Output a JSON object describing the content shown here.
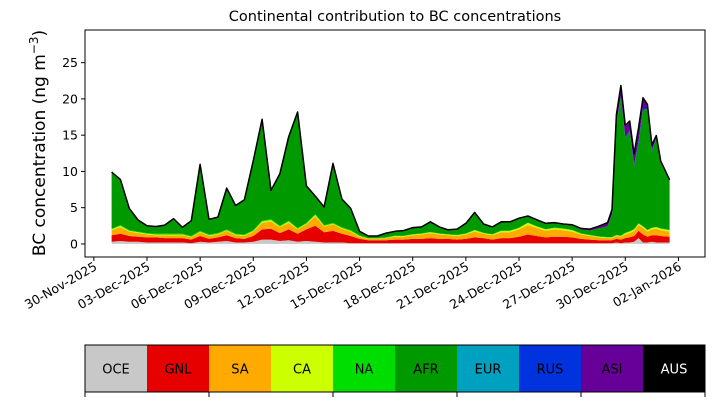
{
  "chart_data": {
    "type": "area",
    "title": "Continental contribution to BC concentrations",
    "ylabel_main": "BC concentration (ng m",
    "ylabel_sup": "−3",
    "ylabel_close": ")",
    "xlabel": "",
    "ylim": [
      -1.8,
      29.5
    ],
    "xlim": [
      "2025-11-29T12:00",
      "2026-01-03T12:00"
    ],
    "y_ticks": [
      0,
      5,
      10,
      15,
      20,
      25
    ],
    "x_ticks": [
      "30-Nov-2025",
      "03-Dec-2025",
      "06-Dec-2025",
      "09-Dec-2025",
      "12-Dec-2025",
      "15-Dec-2025",
      "18-Dec-2025",
      "21-Dec-2025",
      "24-Dec-2025",
      "27-Dec-2025",
      "30-Dec-2025",
      "02-Jan-2026"
    ],
    "x_tick_dates": [
      "2025-11-30",
      "2025-12-03",
      "2025-12-06",
      "2025-12-09",
      "2025-12-12",
      "2025-12-15",
      "2025-12-18",
      "2025-12-21",
      "2025-12-24",
      "2025-12-27",
      "2025-12-30",
      "2026-01-02"
    ],
    "x": [
      "2025-12-01T00:00",
      "2025-12-01T12:00",
      "2025-12-02T00:00",
      "2025-12-02T12:00",
      "2025-12-03T00:00",
      "2025-12-03T12:00",
      "2025-12-04T00:00",
      "2025-12-04T12:00",
      "2025-12-05T00:00",
      "2025-12-05T12:00",
      "2025-12-06T00:00",
      "2025-12-06T12:00",
      "2025-12-07T00:00",
      "2025-12-07T12:00",
      "2025-12-08T00:00",
      "2025-12-08T12:00",
      "2025-12-09T00:00",
      "2025-12-09T12:00",
      "2025-12-10T00:00",
      "2025-12-10T12:00",
      "2025-12-11T00:00",
      "2025-12-11T12:00",
      "2025-12-12T00:00",
      "2025-12-12T12:00",
      "2025-12-13T00:00",
      "2025-12-13T12:00",
      "2025-12-14T00:00",
      "2025-12-14T12:00",
      "2025-12-15T00:00",
      "2025-12-15T12:00",
      "2025-12-16T00:00",
      "2025-12-16T12:00",
      "2025-12-17T00:00",
      "2025-12-17T12:00",
      "2025-12-18T00:00",
      "2025-12-18T12:00",
      "2025-12-19T00:00",
      "2025-12-19T12:00",
      "2025-12-20T00:00",
      "2025-12-20T12:00",
      "2025-12-21T00:00",
      "2025-12-21T12:00",
      "2025-12-22T00:00",
      "2025-12-22T12:00",
      "2025-12-23T00:00",
      "2025-12-23T12:00",
      "2025-12-24T00:00",
      "2025-12-24T12:00",
      "2025-12-25T00:00",
      "2025-12-25T12:00",
      "2025-12-26T00:00",
      "2025-12-26T12:00",
      "2025-12-27T00:00",
      "2025-12-27T12:00",
      "2025-12-28T00:00",
      "2025-12-28T12:00",
      "2025-12-29T00:00",
      "2025-12-29T06:00",
      "2025-12-29T12:00",
      "2025-12-29T18:00",
      "2025-12-30T00:00",
      "2025-12-30T06:00",
      "2025-12-30T12:00",
      "2025-12-30T18:00",
      "2025-12-31T00:00",
      "2025-12-31T06:00",
      "2025-12-31T12:00",
      "2025-12-31T18:00",
      "2026-01-01T00:00",
      "2026-01-01T12:00"
    ],
    "series": [
      {
        "name": "OCE",
        "color": "#c8c8c8",
        "values": [
          0.3,
          0.4,
          0.3,
          0.3,
          0.2,
          0.2,
          0.2,
          0.2,
          0.2,
          0.1,
          0.3,
          0.2,
          0.3,
          0.4,
          0.2,
          0.2,
          0.3,
          0.6,
          0.6,
          0.4,
          0.5,
          0.3,
          0.4,
          0.3,
          0.2,
          0.2,
          0.2,
          0.1,
          0.1,
          0.1,
          0.1,
          0.1,
          0.1,
          0.1,
          0.1,
          0.1,
          0.1,
          0.1,
          0.1,
          0.1,
          0.1,
          0.1,
          0.1,
          0.1,
          0.1,
          0.1,
          0.1,
          0.1,
          0.1,
          0.1,
          0.1,
          0.1,
          0.1,
          0.1,
          0.1,
          0.1,
          0.1,
          0.1,
          0.2,
          0.1,
          0.2,
          0.2,
          0.3,
          0.8,
          0.2,
          0.2,
          0.3,
          0.2,
          0.2,
          0.2
        ]
      },
      {
        "name": "GNL",
        "color": "#e60000",
        "values": [
          0.9,
          1.0,
          0.8,
          0.7,
          0.7,
          0.7,
          0.6,
          0.6,
          0.6,
          0.5,
          0.8,
          0.5,
          0.6,
          0.8,
          0.6,
          0.5,
          0.8,
          1.4,
          1.5,
          1.1,
          1.5,
          1.1,
          1.6,
          2.2,
          1.4,
          1.6,
          1.2,
          1.0,
          0.6,
          0.4,
          0.4,
          0.4,
          0.5,
          0.5,
          0.6,
          0.6,
          0.7,
          0.6,
          0.6,
          0.5,
          0.6,
          0.8,
          0.7,
          0.5,
          0.7,
          0.7,
          0.9,
          1.2,
          1.0,
          0.8,
          0.9,
          0.9,
          0.8,
          0.6,
          0.5,
          0.4,
          0.4,
          0.4,
          0.5,
          0.5,
          0.6,
          0.7,
          0.8,
          1.0,
          1.1,
          0.8,
          0.9,
          1.0,
          0.9,
          0.8
        ]
      },
      {
        "name": "SA",
        "color": "#ffaa00",
        "values": [
          0.7,
          0.9,
          0.6,
          0.5,
          0.4,
          0.3,
          0.4,
          0.4,
          0.4,
          0.3,
          0.5,
          0.4,
          0.4,
          0.6,
          0.4,
          0.4,
          0.6,
          0.9,
          1.0,
          0.8,
          0.9,
          0.6,
          0.7,
          1.3,
          0.8,
          0.9,
          0.7,
          0.6,
          0.3,
          0.2,
          0.2,
          0.3,
          0.4,
          0.4,
          0.5,
          0.6,
          0.7,
          0.6,
          0.5,
          0.5,
          0.6,
          0.8,
          0.6,
          0.6,
          0.8,
          0.8,
          1.0,
          1.3,
          1.1,
          0.9,
          1.0,
          0.9,
          0.8,
          0.6,
          0.5,
          0.4,
          0.3,
          0.3,
          0.4,
          0.4,
          0.5,
          0.6,
          0.7,
          0.8,
          0.9,
          0.7,
          0.8,
          0.9,
          0.8,
          0.7
        ]
      },
      {
        "name": "CA",
        "color": "#ccff00",
        "values": [
          0.1,
          0.2,
          0.1,
          0.1,
          0.1,
          0.1,
          0.1,
          0.1,
          0.1,
          0.1,
          0.1,
          0.1,
          0.1,
          0.1,
          0.1,
          0.1,
          0.1,
          0.2,
          0.2,
          0.1,
          0.2,
          0.1,
          0.1,
          0.2,
          0.1,
          0.1,
          0.1,
          0.1,
          0.1,
          0.05,
          0.05,
          0.05,
          0.1,
          0.1,
          0.1,
          0.1,
          0.1,
          0.1,
          0.1,
          0.1,
          0.1,
          0.2,
          0.1,
          0.1,
          0.2,
          0.2,
          0.2,
          0.3,
          0.2,
          0.2,
          0.2,
          0.2,
          0.2,
          0.1,
          0.1,
          0.1,
          0.1,
          0.1,
          0.1,
          0.1,
          0.2,
          0.2,
          0.2,
          0.2,
          0.2,
          0.2,
          0.2,
          0.2,
          0.2,
          0.2
        ]
      },
      {
        "name": "NA",
        "color": "#00dd00",
        "values": [
          0.1,
          0.1,
          0.1,
          0.1,
          0.1,
          0.1,
          0.1,
          0.1,
          0.1,
          0.1,
          0.1,
          0.1,
          0.1,
          0.1,
          0.1,
          0.1,
          0.1,
          0.1,
          0.1,
          0.1,
          0.1,
          0.1,
          0.1,
          0.1,
          0.1,
          0.1,
          0.1,
          0.1,
          0.05,
          0.05,
          0.05,
          0.05,
          0.05,
          0.05,
          0.05,
          0.05,
          0.05,
          0.05,
          0.05,
          0.05,
          0.05,
          0.05,
          0.05,
          0.05,
          0.05,
          0.05,
          0.05,
          0.05,
          0.05,
          0.05,
          0.05,
          0.05,
          0.05,
          0.05,
          0.05,
          0.05,
          0.05,
          0.05,
          0.05,
          0.05,
          0.05,
          0.05,
          0.05,
          0.05,
          0.05,
          0.05,
          0.05,
          0.05,
          0.05,
          0.05
        ]
      },
      {
        "name": "AFR",
        "color": "#009900",
        "values": [
          7.8,
          6.3,
          3.0,
          1.6,
          1.0,
          1.0,
          1.2,
          2.1,
          0.9,
          2.1,
          9.2,
          2.1,
          2.2,
          5.7,
          3.9,
          4.8,
          9.6,
          14.0,
          4.0,
          7.2,
          11.6,
          16.0,
          5.1,
          2.5,
          2.5,
          8.2,
          3.9,
          3.0,
          0.6,
          0.3,
          0.3,
          0.6,
          0.6,
          0.7,
          0.9,
          0.9,
          1.4,
          0.9,
          0.6,
          0.8,
          1.4,
          2.4,
          1.2,
          1.0,
          1.2,
          1.2,
          1.3,
          0.9,
          0.9,
          0.8,
          0.7,
          0.6,
          0.7,
          0.5,
          0.6,
          1.1,
          1.5,
          3.0,
          15.3,
          19.0,
          13.0,
          13.8,
          8.7,
          11.0,
          16.0,
          16.7,
          10.5,
          12.2,
          9.0,
          6.7
        ]
      },
      {
        "name": "EUR",
        "color": "#00a0c0",
        "values": [
          0,
          0,
          0,
          0,
          0,
          0,
          0,
          0,
          0,
          0,
          0,
          0,
          0,
          0,
          0,
          0,
          0,
          0,
          0,
          0,
          0,
          0,
          0,
          0,
          0,
          0,
          0,
          0,
          0,
          0,
          0,
          0,
          0,
          0,
          0,
          0,
          0,
          0,
          0,
          0,
          0,
          0,
          0,
          0,
          0,
          0,
          0,
          0,
          0,
          0,
          0,
          0,
          0,
          0,
          0,
          0,
          0,
          0,
          0,
          0,
          0,
          0,
          0,
          0,
          0,
          0,
          0,
          0,
          0,
          0
        ]
      },
      {
        "name": "RUS",
        "color": "#0033dd",
        "values": [
          0,
          0,
          0,
          0,
          0,
          0,
          0,
          0,
          0,
          0,
          0,
          0,
          0,
          0,
          0,
          0,
          0,
          0,
          0,
          0,
          0,
          0,
          0,
          0,
          0,
          0,
          0,
          0,
          0,
          0,
          0,
          0,
          0,
          0,
          0,
          0,
          0,
          0,
          0,
          0,
          0,
          0,
          0,
          0,
          0,
          0,
          0,
          0,
          0,
          0,
          0,
          0,
          0,
          0,
          0,
          0,
          0,
          0.1,
          0.1,
          0.2,
          0.2,
          0.1,
          0.2,
          0.4,
          0.3,
          0.1,
          0.2,
          0.1,
          0.1,
          0.1
        ]
      },
      {
        "name": "ASI",
        "color": "#660099",
        "values": [
          0,
          0,
          0,
          0,
          0,
          0,
          0,
          0,
          0,
          0,
          0,
          0,
          0,
          0,
          0,
          0,
          0,
          0,
          0,
          0,
          0,
          0,
          0,
          0,
          0,
          0,
          0,
          0,
          0,
          0,
          0,
          0,
          0,
          0,
          0,
          0,
          0,
          0,
          0,
          0,
          0,
          0,
          0,
          0,
          0,
          0,
          0,
          0,
          0,
          0,
          0,
          0,
          0,
          0.2,
          0.2,
          0.3,
          0.5,
          0.7,
          1.2,
          1.5,
          1.6,
          1.3,
          1.5,
          1.8,
          1.4,
          0.5,
          0.7,
          0.3,
          0.2,
          0.1
        ]
      },
      {
        "name": "AUS",
        "color": "#000000",
        "values": [
          0,
          0,
          0,
          0,
          0,
          0,
          0,
          0,
          0,
          0,
          0,
          0,
          0,
          0,
          0,
          0,
          0,
          0,
          0,
          0,
          0,
          0,
          0,
          0,
          0,
          0,
          0,
          0,
          0,
          0,
          0,
          0,
          0,
          0,
          0,
          0,
          0,
          0,
          0,
          0,
          0,
          0,
          0,
          0,
          0,
          0,
          0,
          0,
          0,
          0,
          0,
          0,
          0,
          0,
          0,
          0,
          0,
          0,
          0,
          0,
          0,
          0,
          0,
          0,
          0,
          0,
          0,
          0,
          0,
          0
        ]
      }
    ],
    "total_color": "#000000",
    "grid": false,
    "legend": {
      "type": "colorbar",
      "placement": "bottom",
      "items": [
        {
          "label": "OCE",
          "color": "#c8c8c8",
          "text_color": "#000000"
        },
        {
          "label": "GNL",
          "color": "#e60000",
          "text_color": "#000000"
        },
        {
          "label": "SA",
          "color": "#ffaa00",
          "text_color": "#000000"
        },
        {
          "label": "CA",
          "color": "#ccff00",
          "text_color": "#000000"
        },
        {
          "label": "NA",
          "color": "#00dd00",
          "text_color": "#000000"
        },
        {
          "label": "AFR",
          "color": "#009900",
          "text_color": "#000000"
        },
        {
          "label": "EUR",
          "color": "#00a0c0",
          "text_color": "#000000"
        },
        {
          "label": "RUS",
          "color": "#0033dd",
          "text_color": "#000000"
        },
        {
          "label": "ASI",
          "color": "#660099",
          "text_color": "#000000"
        },
        {
          "label": "AUS",
          "color": "#000000",
          "text_color": "#ffffff"
        }
      ]
    }
  }
}
